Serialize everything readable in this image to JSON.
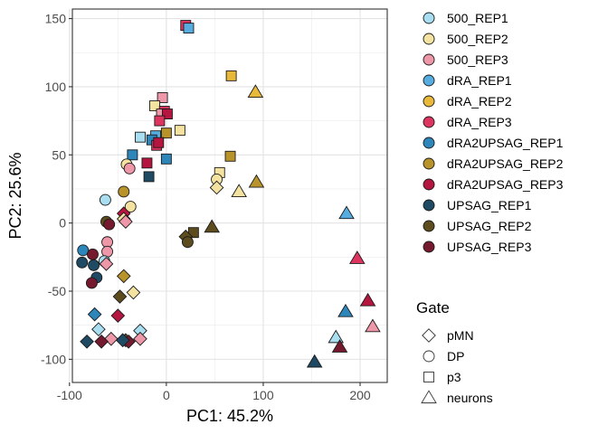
{
  "chart_data": {
    "type": "scatter",
    "xlabel": "PC1: 45.2%",
    "ylabel": "PC2: 25.6%",
    "xlim": [
      -97,
      228
    ],
    "ylim": [
      -117,
      157
    ],
    "xticks": [
      -100,
      0,
      100,
      200
    ],
    "yticks": [
      -100,
      -50,
      0,
      50,
      100,
      150
    ],
    "xtick_labels": [
      "-100",
      "0",
      "100",
      "200"
    ],
    "ytick_labels": [
      "-100",
      "-50",
      "0",
      "50",
      "100",
      "150"
    ],
    "grid": true,
    "panel_border": true,
    "legend_position": "right",
    "colors": {
      "500_REP1": "#a9def0",
      "500_REP2": "#f3e2a0",
      "500_REP3": "#ee97a8",
      "dRA_REP1": "#57ade0",
      "dRA_REP2": "#e8b83a",
      "dRA_REP3": "#dd3460",
      "dRA2UPSAG_REP1": "#2c86ba",
      "dRA2UPSAG_REP2": "#b8932a",
      "dRA2UPSAG_REP3": "#b5163f",
      "UPSAG_REP1": "#1f4a63",
      "UPSAG_REP2": "#5d4c1e",
      "UPSAG_REP3": "#751a2e"
    },
    "color_legend": {
      "title": "",
      "entries": [
        "500_REP1",
        "500_REP2",
        "500_REP3",
        "dRA_REP1",
        "dRA_REP2",
        "dRA_REP3",
        "dRA2UPSAG_REP1",
        "dRA2UPSAG_REP2",
        "dRA2UPSAG_REP3",
        "UPSAG_REP1",
        "UPSAG_REP2",
        "UPSAG_REP3"
      ]
    },
    "shape_legend": {
      "title": "Gate",
      "entries": [
        {
          "label": "pMN",
          "shape": "diamond"
        },
        {
          "label": "DP",
          "shape": "circle"
        },
        {
          "label": "p3",
          "shape": "square"
        },
        {
          "label": "neurons",
          "shape": "triangle"
        }
      ]
    },
    "points": [
      {
        "x": 20,
        "y": 145,
        "shape": "square",
        "sample": "dRA_REP3"
      },
      {
        "x": 23,
        "y": 143,
        "shape": "square",
        "sample": "dRA_REP1"
      },
      {
        "x": 67,
        "y": 108,
        "shape": "square",
        "sample": "dRA_REP2"
      },
      {
        "x": 92,
        "y": 96,
        "shape": "triangle",
        "sample": "dRA_REP2"
      },
      {
        "x": -4,
        "y": 92,
        "shape": "square",
        "sample": "500_REP3"
      },
      {
        "x": -12,
        "y": 86,
        "shape": "square",
        "sample": "500_REP2"
      },
      {
        "x": -2,
        "y": 82,
        "shape": "square",
        "sample": "dRA_REP3"
      },
      {
        "x": -5,
        "y": 80,
        "shape": "square",
        "sample": "500_REP3"
      },
      {
        "x": 1,
        "y": 80,
        "shape": "square",
        "sample": "dRA2UPSAG_REP3"
      },
      {
        "x": -7,
        "y": 75,
        "shape": "square",
        "sample": "dRA_REP3"
      },
      {
        "x": 14,
        "y": 68,
        "shape": "square",
        "sample": "500_REP2"
      },
      {
        "x": 0,
        "y": 66,
        "shape": "square",
        "sample": "dRA2UPSAG_REP2"
      },
      {
        "x": -11,
        "y": 64,
        "shape": "square",
        "sample": "dRA_REP1"
      },
      {
        "x": -27,
        "y": 63,
        "shape": "square",
        "sample": "500_REP1"
      },
      {
        "x": -15,
        "y": 61,
        "shape": "square",
        "sample": "dRA2UPSAG_REP1"
      },
      {
        "x": -10,
        "y": 57,
        "shape": "square",
        "sample": "dRA_REP3"
      },
      {
        "x": -8,
        "y": 59,
        "shape": "square",
        "sample": "dRA2UPSAG_REP3"
      },
      {
        "x": -35,
        "y": 50,
        "shape": "square",
        "sample": "dRA2UPSAG_REP1"
      },
      {
        "x": 0,
        "y": 47,
        "shape": "square",
        "sample": "dRA2UPSAG_REP1"
      },
      {
        "x": -20,
        "y": 44,
        "shape": "square",
        "sample": "dRA2UPSAG_REP3"
      },
      {
        "x": -18,
        "y": 34,
        "shape": "square",
        "sample": "UPSAG_REP1"
      },
      {
        "x": 66,
        "y": 49,
        "shape": "square",
        "sample": "dRA2UPSAG_REP2"
      },
      {
        "x": 55,
        "y": 37,
        "shape": "square",
        "sample": "500_REP2"
      },
      {
        "x": -41,
        "y": 43,
        "shape": "circle",
        "sample": "500_REP2"
      },
      {
        "x": -38,
        "y": 40,
        "shape": "circle",
        "sample": "500_REP3"
      },
      {
        "x": -44,
        "y": 23,
        "shape": "circle",
        "sample": "dRA2UPSAG_REP2"
      },
      {
        "x": 52,
        "y": 32,
        "shape": "circle",
        "sample": "500_REP2"
      },
      {
        "x": 52,
        "y": 26,
        "shape": "diamond",
        "sample": "500_REP2"
      },
      {
        "x": 93,
        "y": 30,
        "shape": "triangle",
        "sample": "dRA2UPSAG_REP2"
      },
      {
        "x": 75,
        "y": 23,
        "shape": "triangle",
        "sample": "500_REP2"
      },
      {
        "x": -63,
        "y": 17,
        "shape": "circle",
        "sample": "500_REP1"
      },
      {
        "x": -37,
        "y": 12,
        "shape": "circle",
        "sample": "500_REP2"
      },
      {
        "x": -44,
        "y": 7,
        "shape": "diamond",
        "sample": "dRA2UPSAG_REP3"
      },
      {
        "x": -44,
        "y": 3,
        "shape": "diamond",
        "sample": "500_REP2"
      },
      {
        "x": -42,
        "y": 1,
        "shape": "diamond",
        "sample": "500_REP3"
      },
      {
        "x": -62,
        "y": 1,
        "shape": "circle",
        "sample": "UPSAG_REP2"
      },
      {
        "x": -59,
        "y": -1,
        "shape": "circle",
        "sample": "UPSAG_REP3"
      },
      {
        "x": 47,
        "y": -3,
        "shape": "triangle",
        "sample": "UPSAG_REP2"
      },
      {
        "x": 28,
        "y": -7,
        "shape": "square",
        "sample": "UPSAG_REP2"
      },
      {
        "x": 20,
        "y": -10,
        "shape": "diamond",
        "sample": "UPSAG_REP2"
      },
      {
        "x": 22,
        "y": -14,
        "shape": "circle",
        "sample": "UPSAG_REP2"
      },
      {
        "x": 186,
        "y": 7,
        "shape": "triangle",
        "sample": "dRA_REP1"
      },
      {
        "x": -61,
        "y": -14,
        "shape": "circle",
        "sample": "500_REP3"
      },
      {
        "x": -61,
        "y": -21,
        "shape": "circle",
        "sample": "500_REP3"
      },
      {
        "x": -86,
        "y": -20,
        "shape": "circle",
        "sample": "dRA2UPSAG_REP1"
      },
      {
        "x": -76,
        "y": -23,
        "shape": "circle",
        "sample": "UPSAG_REP3"
      },
      {
        "x": -87,
        "y": -29,
        "shape": "circle",
        "sample": "UPSAG_REP1"
      },
      {
        "x": -64,
        "y": -28,
        "shape": "circle",
        "sample": "500_REP1"
      },
      {
        "x": -62,
        "y": -30,
        "shape": "diamond",
        "sample": "500_REP3"
      },
      {
        "x": -75,
        "y": -31,
        "shape": "circle",
        "sample": "UPSAG_REP1"
      },
      {
        "x": -72,
        "y": -40,
        "shape": "circle",
        "sample": "UPSAG_REP1"
      },
      {
        "x": -77,
        "y": -44,
        "shape": "circle",
        "sample": "UPSAG_REP3"
      },
      {
        "x": -44,
        "y": -39,
        "shape": "diamond",
        "sample": "dRA2UPSAG_REP2"
      },
      {
        "x": 197,
        "y": -26,
        "shape": "triangle",
        "sample": "dRA_REP3"
      },
      {
        "x": -34,
        "y": -51,
        "shape": "diamond",
        "sample": "500_REP2"
      },
      {
        "x": -48,
        "y": -54,
        "shape": "diamond",
        "sample": "UPSAG_REP2"
      },
      {
        "x": 208,
        "y": -57,
        "shape": "triangle",
        "sample": "dRA2UPSAG_REP3"
      },
      {
        "x": 185,
        "y": -65,
        "shape": "triangle",
        "sample": "dRA2UPSAG_REP1"
      },
      {
        "x": -74,
        "y": -67,
        "shape": "diamond",
        "sample": "dRA2UPSAG_REP1"
      },
      {
        "x": -50,
        "y": -68,
        "shape": "diamond",
        "sample": "dRA2UPSAG_REP3"
      },
      {
        "x": -70,
        "y": -78,
        "shape": "diamond",
        "sample": "500_REP1"
      },
      {
        "x": -27,
        "y": -79,
        "shape": "diamond",
        "sample": "500_REP1"
      },
      {
        "x": 213,
        "y": -76,
        "shape": "triangle",
        "sample": "500_REP3"
      },
      {
        "x": 175,
        "y": -84,
        "shape": "triangle",
        "sample": "500_REP1"
      },
      {
        "x": -57,
        "y": -85,
        "shape": "diamond",
        "sample": "500_REP3"
      },
      {
        "x": -27,
        "y": -85,
        "shape": "diamond",
        "sample": "500_REP3"
      },
      {
        "x": -82,
        "y": -87,
        "shape": "diamond",
        "sample": "UPSAG_REP1"
      },
      {
        "x": -67,
        "y": -87,
        "shape": "diamond",
        "sample": "UPSAG_REP3"
      },
      {
        "x": -42,
        "y": -86,
        "shape": "diamond",
        "sample": "UPSAG_REP2"
      },
      {
        "x": -39,
        "y": -87,
        "shape": "diamond",
        "sample": "UPSAG_REP3"
      },
      {
        "x": -45,
        "y": -86,
        "shape": "diamond",
        "sample": "UPSAG_REP1"
      },
      {
        "x": 179,
        "y": -91,
        "shape": "triangle",
        "sample": "UPSAG_REP3"
      },
      {
        "x": 153,
        "y": -102,
        "shape": "triangle",
        "sample": "UPSAG_REP1"
      }
    ]
  }
}
